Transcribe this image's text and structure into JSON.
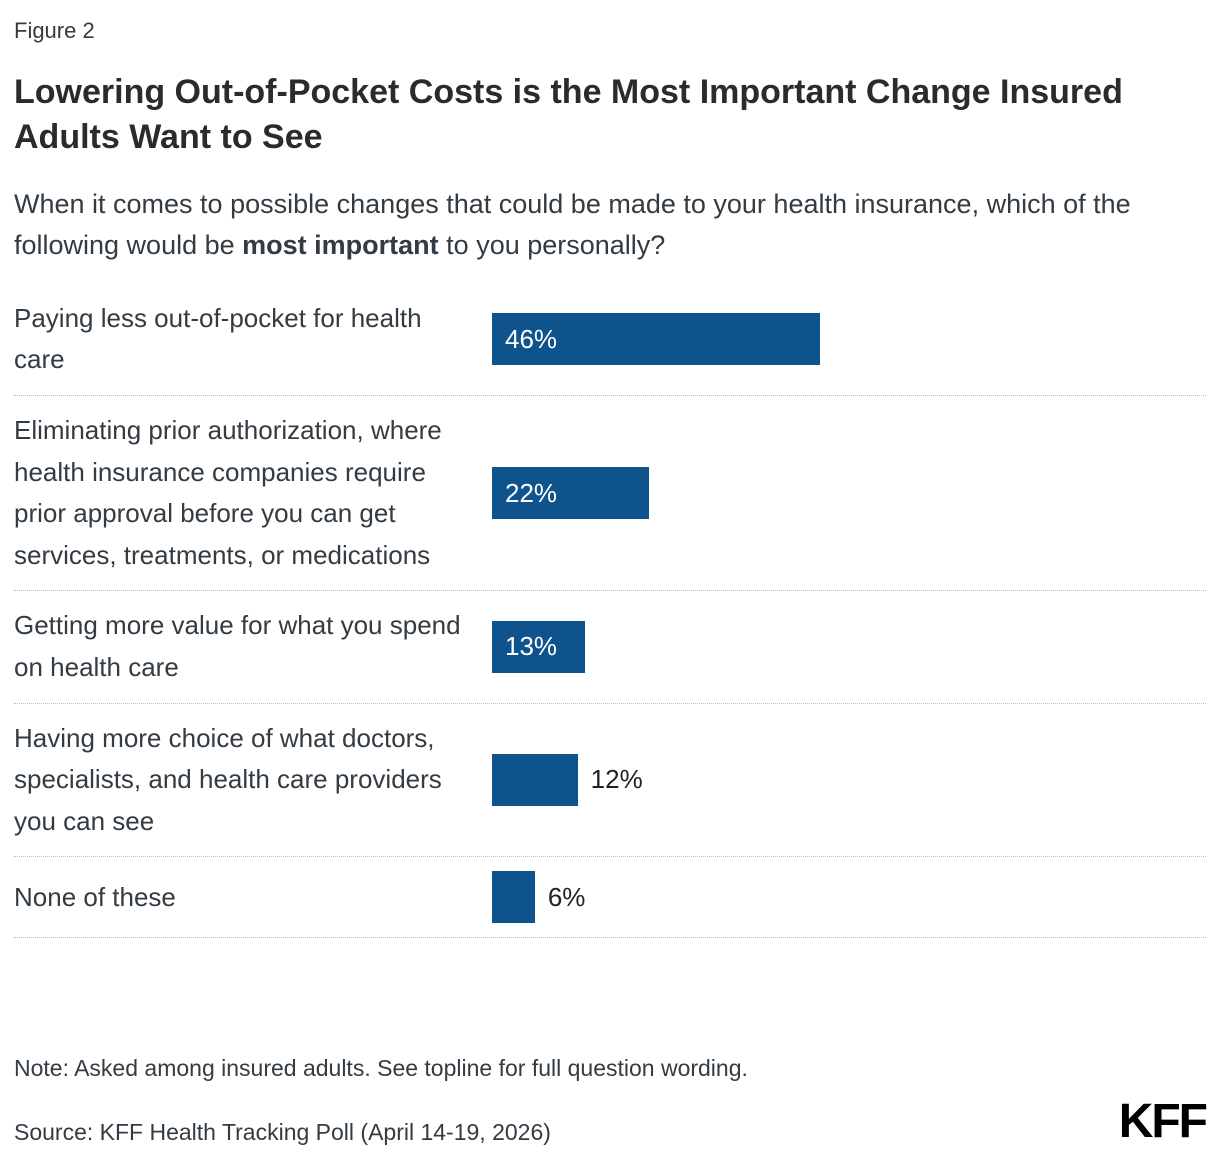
{
  "figure_label": "Figure 2",
  "title": "Lowering Out-of-Pocket Costs is the Most Important Change Insured Adults Want to See",
  "subtitle": {
    "prefix": "When it comes to possible changes that could be made to your health insurance, which of the following would be ",
    "bold": "most important",
    "suffix": " to you personally?"
  },
  "footer": {
    "note": "Note: Asked among insured adults. See topline for full question wording.",
    "source": "Source: KFF Health Tracking Poll (April 14-19, 2026)",
    "logo": "KFF"
  },
  "colors": {
    "bar": "#0E538C",
    "inside_label": "#FFFFFF",
    "outside_label": "#222222",
    "separator": "#BDBDBD"
  },
  "chart_data": {
    "type": "bar",
    "orientation": "horizontal",
    "title": "Lowering Out-of-Pocket Costs is the Most Important Change Insured Adults Want to See",
    "categories": [
      "Paying less out-of-pocket for health care",
      "Eliminating prior authorization, where health insurance companies require prior approval before you can get services, treatments, or medications",
      "Getting more value for what you spend on health care",
      "Having more choice of what doctors, specialists, and health care providers you can see",
      "None of these"
    ],
    "values": [
      46,
      22,
      13,
      12,
      6
    ],
    "value_labels": [
      "46%",
      "22%",
      "13%",
      "12%",
      "6%"
    ],
    "label_position": [
      "inside",
      "inside",
      "inside",
      "outside",
      "outside"
    ],
    "xlim": [
      0,
      100
    ],
    "grid": false,
    "legend": false
  }
}
